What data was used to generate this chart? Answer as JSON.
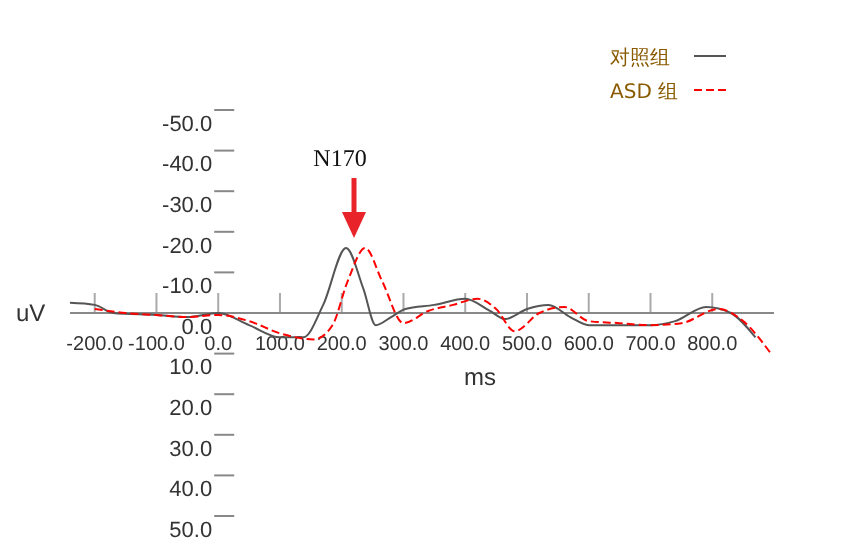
{
  "chart_data": {
    "type": "line",
    "xlabel": "ms",
    "ylabel": "uV",
    "annotations": [
      "N170"
    ],
    "xlim": [
      -240,
      900
    ],
    "ylim": [
      50,
      -50
    ],
    "xticks": [
      {
        "value": -200,
        "label": "-200.0"
      },
      {
        "value": -100,
        "label": "-100.0"
      },
      {
        "value": 0,
        "label": "0.0"
      },
      {
        "value": 100,
        "label": "100.0"
      },
      {
        "value": 200,
        "label": "200.0"
      },
      {
        "value": 300,
        "label": "300.0"
      },
      {
        "value": 400,
        "label": "400.0"
      },
      {
        "value": 500,
        "label": "500.0"
      },
      {
        "value": 600,
        "label": "600.0"
      },
      {
        "value": 700,
        "label": "700.0"
      },
      {
        "value": 800,
        "label": "800.0"
      }
    ],
    "yticks": [
      {
        "value": -50,
        "label": "-50.0"
      },
      {
        "value": -40,
        "label": "-40.0"
      },
      {
        "value": -30,
        "label": "-30.0"
      },
      {
        "value": -20,
        "label": "-20.0"
      },
      {
        "value": -10,
        "label": "-10.0"
      },
      {
        "value": 0,
        "label": "0.0"
      },
      {
        "value": 10,
        "label": "10.0"
      },
      {
        "value": 20,
        "label": "20.0"
      },
      {
        "value": 30,
        "label": "30.0"
      },
      {
        "value": 40,
        "label": "40.0"
      },
      {
        "value": 50,
        "label": "50.0"
      }
    ],
    "grid": false,
    "legend": "top right",
    "marker": "none",
    "series": [
      {
        "name": "对照组",
        "color": "#555555",
        "line_style": "solid",
        "x": [
          -240,
          -200,
          -170,
          -100,
          -50,
          0,
          50,
          100,
          138,
          170,
          207,
          235,
          255,
          280,
          303,
          350,
          400,
          440,
          465,
          500,
          535,
          570,
          600,
          650,
          700,
          740,
          790,
          830,
          870
        ],
        "values": [
          -2.5,
          -2,
          0,
          0.5,
          1,
          0,
          3,
          6,
          6,
          -2,
          -16,
          -6,
          3,
          1,
          -1,
          -2,
          -3.5,
          -0.5,
          1.5,
          -1,
          -2,
          1,
          3,
          3,
          3,
          2,
          -1.5,
          0,
          6
        ]
      },
      {
        "name": "ASD 组",
        "color": "#ff0000",
        "line_style": "dashed",
        "x": [
          -200,
          -150,
          -100,
          -50,
          0,
          50,
          100,
          155,
          185,
          210,
          238,
          265,
          300,
          340,
          380,
          420,
          450,
          480,
          520,
          560,
          600,
          650,
          700,
          750,
          810,
          850,
          895
        ],
        "values": [
          -1,
          0,
          0.5,
          1,
          0.5,
          2,
          5,
          6.5,
          3,
          -8,
          -16,
          -8,
          2.5,
          -0.5,
          -2,
          -3.5,
          -1,
          4.5,
          0,
          -1.5,
          2,
          2.5,
          3,
          2.5,
          -1,
          2,
          10
        ]
      }
    ]
  }
}
